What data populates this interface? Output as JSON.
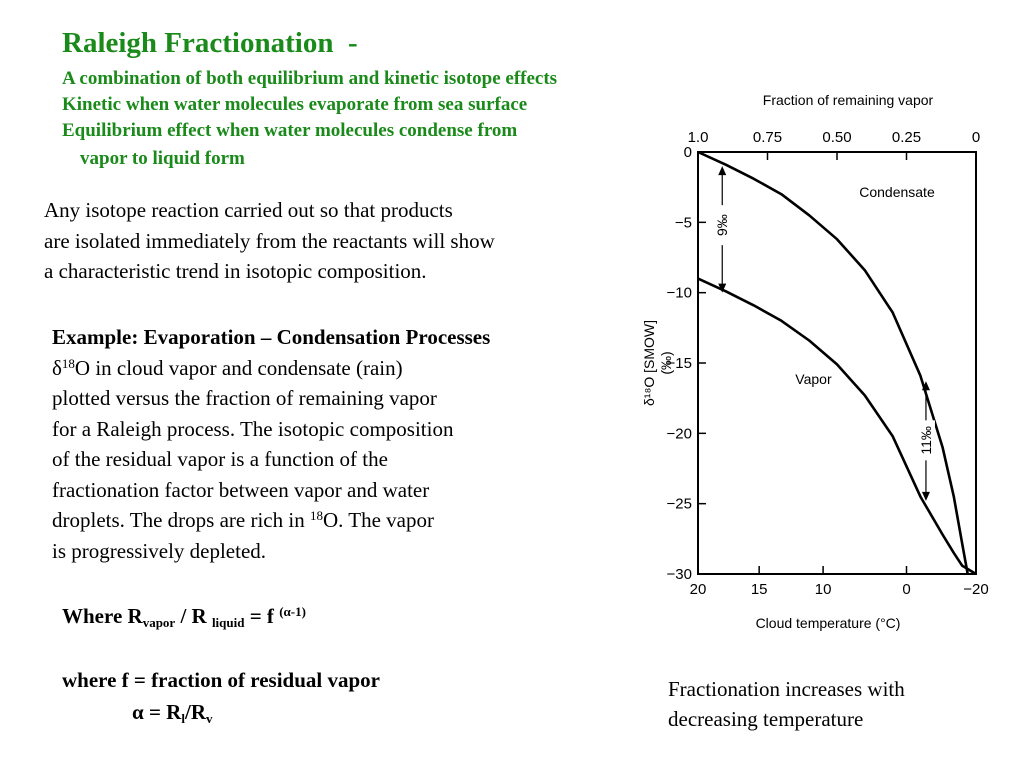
{
  "header": {
    "title": "Raleigh Fractionation  -",
    "lines": [
      "A combination of both equilibrium and kinetic isotope effects",
      "Kinetic when water molecules evaporate from sea surface",
      "Equilibrium effect when water molecules condense from",
      "vapor to liquid form"
    ]
  },
  "intro": {
    "lines": [
      "Any isotope reaction carried out so that products",
      "are isolated immediately from the reactants will show",
      "a characteristic trend in isotopic composition."
    ]
  },
  "example": {
    "heading": "Example: Evaporation – Condensation Processes",
    "delta": "δ",
    "iso_mass": "18",
    "line1_rest": "O in cloud vapor and condensate (rain)",
    "lines": [
      "plotted versus the fraction of remaining vapor",
      "for a Raleigh process. The isotopic composition",
      "of the residual vapor is a function of the",
      "fractionation factor between vapor and water"
    ],
    "drops_pre": "droplets. The drops are rich in ",
    "drops_post": "O. The vapor",
    "last_line": "is progressively depleted."
  },
  "formula1": {
    "where_R": "Where R",
    "vapor_sub": "vapor",
    "slash_R": " / R ",
    "liquid_sub": "liquid",
    "equals_f": " = f ",
    "exponent": "(α-1)"
  },
  "formula2": {
    "line1": "where f = fraction of residual vapor",
    "alpha_pre": "α = R",
    "l_sub": "l",
    "slash_R": "/R",
    "v_sub": "v"
  },
  "chart_data": {
    "type": "line",
    "top_axis_label": "Fraction of remaining vapor",
    "top_ticks": [
      "1.0",
      "0.75",
      "0.50",
      "0.25",
      "0"
    ],
    "top_tick_values": [
      1.0,
      0.75,
      0.5,
      0.25,
      0
    ],
    "ylabel": "δ¹⁸O [SMOW] (‰)",
    "ylabel_line1": "δ¹⁸O [SMOW]",
    "ylabel_line2": "(‰)",
    "ylim": [
      -30,
      0
    ],
    "y_ticks": [
      0,
      -5,
      -10,
      -15,
      -20,
      -25,
      -30
    ],
    "y_tick_labels": [
      "0",
      "−5",
      "−10",
      "−15",
      "−20",
      "−25",
      "−30"
    ],
    "xlabel": "Cloud temperature (°C)",
    "bottom_ticks": [
      "20",
      "15",
      "10",
      "0",
      "−20"
    ],
    "bottom_tick_fractions": [
      1.0,
      0.78,
      0.55,
      0.25,
      0.0
    ],
    "series": [
      {
        "name": "Condensate",
        "x": [
          1.0,
          0.9,
          0.8,
          0.7,
          0.6,
          0.5,
          0.4,
          0.3,
          0.2,
          0.12,
          0.08,
          0.05,
          0.03
        ],
        "values": [
          0.0,
          -0.9,
          -1.9,
          -3.0,
          -4.5,
          -6.2,
          -8.4,
          -11.4,
          -15.9,
          -21.0,
          -24.5,
          -27.8,
          -30.0
        ]
      },
      {
        "name": "Vapor",
        "x": [
          1.0,
          0.9,
          0.8,
          0.7,
          0.6,
          0.5,
          0.4,
          0.3,
          0.2,
          0.12,
          0.08,
          0.05,
          0.0
        ],
        "values": [
          -9.0,
          -9.9,
          -10.9,
          -12.0,
          -13.4,
          -15.1,
          -17.3,
          -20.2,
          -24.5,
          -27.2,
          -28.5,
          -29.4,
          -30.0
        ]
      }
    ],
    "annotations": [
      "9‰",
      "11‰"
    ]
  },
  "caption": {
    "lines": [
      "Fractionation increases with",
      "decreasing temperature"
    ]
  }
}
